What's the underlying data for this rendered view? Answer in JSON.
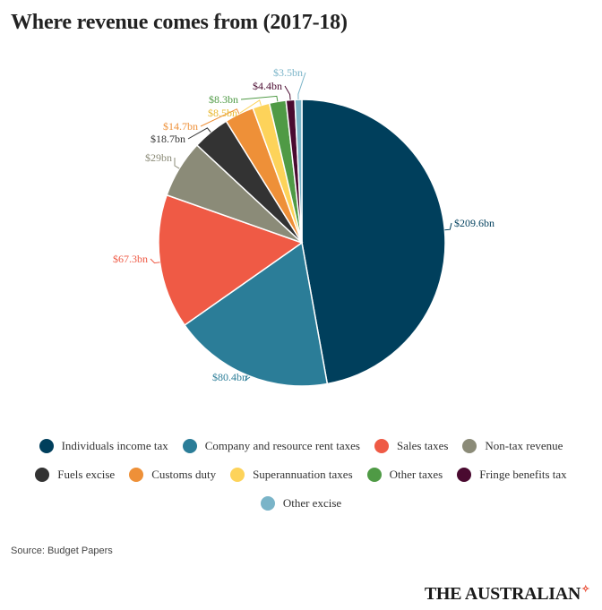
{
  "title": "Where revenue comes from (2017-18)",
  "source": "Source: Budget Papers",
  "brand": {
    "name": "THE AUSTRALIAN",
    "mark": "✧"
  },
  "chart_data": {
    "type": "pie",
    "title": "Where revenue comes from (2017-18)",
    "start_angle_deg": 0,
    "direction": "clockwise",
    "legend_placement": "bottom",
    "slices": [
      {
        "name": "Individuals income tax",
        "value": 209.6,
        "label": "$209.6bn",
        "color": "#003f5c"
      },
      {
        "name": "Company and resource rent taxes",
        "value": 80.4,
        "label": "$80.4bn",
        "color": "#2b7d98"
      },
      {
        "name": "Sales taxes",
        "value": 67.3,
        "label": "$67.3bn",
        "color": "#ef5a45"
      },
      {
        "name": "Non-tax revenue",
        "value": 29,
        "label": "$29bn",
        "color": "#8b8b78"
      },
      {
        "name": "Fuels excise",
        "value": 18.7,
        "label": "$18.7bn",
        "color": "#333333"
      },
      {
        "name": "Customs duty",
        "value": 14.7,
        "label": "$14.7bn",
        "color": "#ee9038"
      },
      {
        "name": "Superannuation taxes",
        "value": 8.5,
        "label": "$8.5bn",
        "color": "#fdd35a"
      },
      {
        "name": "Other taxes",
        "value": 8.3,
        "label": "$8.3bn",
        "color": "#4f9a45"
      },
      {
        "name": "Fringe benefits tax",
        "value": 4.4,
        "label": "$4.4bn",
        "color": "#4a0a30"
      },
      {
        "name": "Other excise",
        "value": 3.5,
        "label": "$3.5bn",
        "color": "#7ab4c8"
      }
    ]
  }
}
